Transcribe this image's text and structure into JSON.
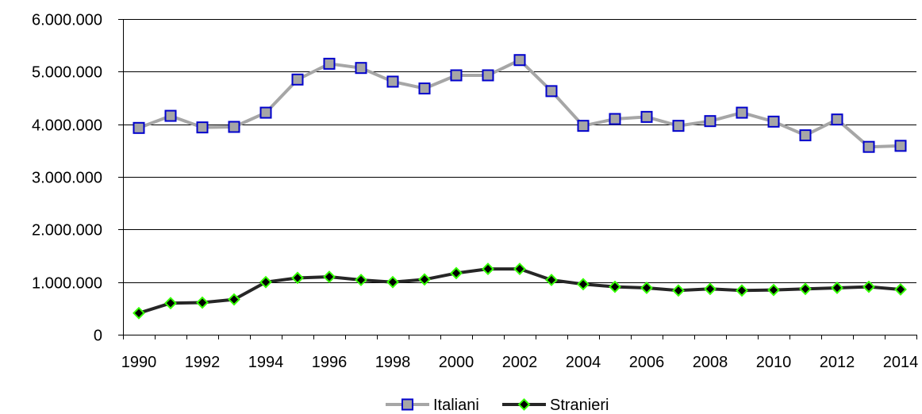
{
  "chart_data": {
    "type": "line",
    "title": "",
    "xlabel": "",
    "ylabel": "",
    "ylim": [
      0,
      6000000
    ],
    "yticks": [
      0,
      1000000,
      2000000,
      3000000,
      4000000,
      5000000,
      6000000
    ],
    "ytick_labels": [
      "0",
      "1.000.000",
      "2.000.000",
      "3.000.000",
      "4.000.000",
      "5.000.000",
      "6.000.000"
    ],
    "x": [
      1990,
      1991,
      1992,
      1993,
      1994,
      1995,
      1996,
      1997,
      1998,
      1999,
      2000,
      2001,
      2002,
      2003,
      2004,
      2005,
      2006,
      2007,
      2008,
      2009,
      2010,
      2011,
      2012,
      2013,
      2014
    ],
    "xtick_labels": [
      "1990",
      "1992",
      "1994",
      "1996",
      "1998",
      "2000",
      "2002",
      "2004",
      "2006",
      "2008",
      "2010",
      "2012",
      "2014"
    ],
    "grid": true,
    "legend_position": "bottom",
    "series": [
      {
        "name": "Italiani",
        "line_color": "#a6a6a6",
        "marker": "square",
        "marker_fill": "#a6a6a6",
        "marker_edge": "#0000cc",
        "values": [
          3930000,
          4160000,
          3940000,
          3950000,
          4220000,
          4850000,
          5150000,
          5070000,
          4810000,
          4680000,
          4930000,
          4930000,
          5220000,
          4630000,
          3970000,
          4100000,
          4140000,
          3970000,
          4060000,
          4220000,
          4050000,
          3790000,
          4090000,
          3570000,
          3590000
        ]
      },
      {
        "name": "Stranieri",
        "line_color": "#262626",
        "marker": "diamond",
        "marker_fill": "#000000",
        "marker_edge": "#33ff00",
        "values": [
          410000,
          600000,
          610000,
          670000,
          1000000,
          1080000,
          1100000,
          1040000,
          1000000,
          1050000,
          1170000,
          1250000,
          1250000,
          1040000,
          960000,
          910000,
          890000,
          840000,
          870000,
          840000,
          850000,
          870000,
          890000,
          910000,
          860000
        ]
      }
    ]
  }
}
